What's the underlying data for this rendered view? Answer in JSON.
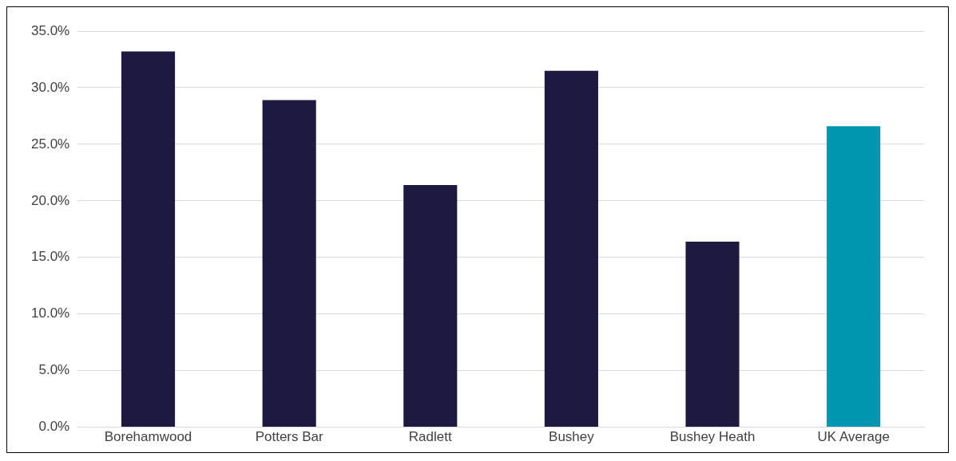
{
  "chart_data": {
    "type": "bar",
    "categories": [
      "Borehamwood",
      "Potters Bar",
      "Radlett",
      "Bushey",
      "Bushey Heath",
      "UK Average"
    ],
    "values": [
      33.2,
      28.9,
      21.4,
      31.5,
      16.4,
      26.6
    ],
    "colors": [
      "#1e1941",
      "#1e1941",
      "#1e1941",
      "#1e1941",
      "#1e1941",
      "#0096b0"
    ],
    "ylim": [
      0,
      35
    ],
    "yticks": [
      {
        "value": 0,
        "label": "0.0%"
      },
      {
        "value": 5,
        "label": "5.0%"
      },
      {
        "value": 10,
        "label": "10.0%"
      },
      {
        "value": 15,
        "label": "15.0%"
      },
      {
        "value": 20,
        "label": "20.0%"
      },
      {
        "value": 25,
        "label": "25.0%"
      },
      {
        "value": 30,
        "label": "30.0%"
      },
      {
        "value": 35,
        "label": "35.0%"
      }
    ],
    "grid": "y",
    "legend": false
  }
}
